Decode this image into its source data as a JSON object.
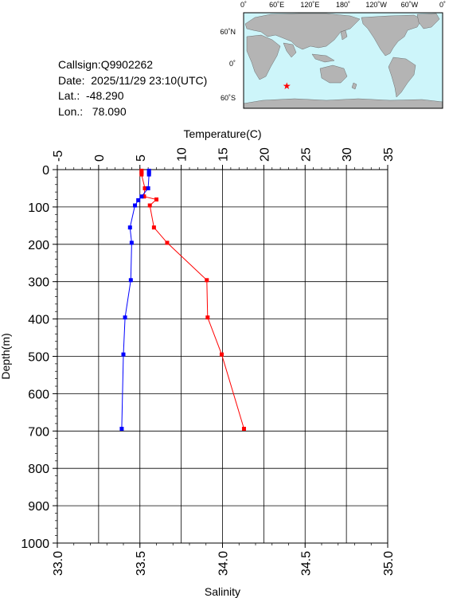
{
  "info": {
    "callsign": "Callsign:Q9902262",
    "date": "Date:  2025/11/29 23:10(UTC)",
    "lat": "Lat.:  -48.290",
    "lon": "Lon.:   78.090"
  },
  "map": {
    "top_labels": [
      "0˚",
      "60˚E",
      "120˚E",
      "180˚",
      "120˚W",
      "60˚W",
      "0˚"
    ],
    "right_labels": [
      "60˚N",
      "0˚",
      "60˚S"
    ],
    "ocean_color": "#cdf5fa",
    "land_color": "#b4b4b4",
    "marker": {
      "lon": 78.09,
      "lat": -48.29,
      "color": "#ff0000",
      "icon": "star-icon"
    }
  },
  "chart_data": {
    "type": "line",
    "title": "",
    "top_axis": {
      "label": "Temperature(C)",
      "min": -5,
      "max": 35,
      "ticks": [
        "-5",
        "0",
        "5",
        "10",
        "15",
        "20",
        "25",
        "30",
        "35"
      ]
    },
    "bottom_axis": {
      "label": "Salinity",
      "min": 33.0,
      "max": 35.0,
      "ticks": [
        "33.0",
        "33.5",
        "34.0",
        "34.5",
        "35.0"
      ]
    },
    "y_axis": {
      "label": "Depth(m)",
      "min": 0,
      "max": 1000,
      "inverted": true,
      "ticks": [
        "0",
        "100",
        "200",
        "300",
        "400",
        "500",
        "600",
        "700",
        "800",
        "900",
        "1000"
      ]
    },
    "grid": true,
    "series": [
      {
        "axis": "temperature",
        "color": "#ff0000",
        "points": [
          {
            "x": 5.2,
            "y": 3
          },
          {
            "x": 5.2,
            "y": 8
          },
          {
            "x": 5.2,
            "y": 13
          },
          {
            "x": 5.6,
            "y": 50
          },
          {
            "x": 5.5,
            "y": 72
          },
          {
            "x": 7.0,
            "y": 80
          },
          {
            "x": 6.2,
            "y": 96
          },
          {
            "x": 6.7,
            "y": 155
          },
          {
            "x": 8.3,
            "y": 196
          },
          {
            "x": 13.1,
            "y": 296
          },
          {
            "x": 13.2,
            "y": 396
          },
          {
            "x": 14.9,
            "y": 495
          },
          {
            "x": 17.6,
            "y": 694
          }
        ]
      },
      {
        "axis": "salinity",
        "color": "#0000ff",
        "points": [
          {
            "x": 33.555,
            "y": 3
          },
          {
            "x": 33.555,
            "y": 8
          },
          {
            "x": 33.555,
            "y": 13
          },
          {
            "x": 33.55,
            "y": 50
          },
          {
            "x": 33.51,
            "y": 72
          },
          {
            "x": 33.49,
            "y": 82
          },
          {
            "x": 33.47,
            "y": 96
          },
          {
            "x": 33.44,
            "y": 155
          },
          {
            "x": 33.45,
            "y": 196
          },
          {
            "x": 33.445,
            "y": 296
          },
          {
            "x": 33.41,
            "y": 396
          },
          {
            "x": 33.4,
            "y": 495
          },
          {
            "x": 33.39,
            "y": 694
          }
        ]
      }
    ]
  }
}
